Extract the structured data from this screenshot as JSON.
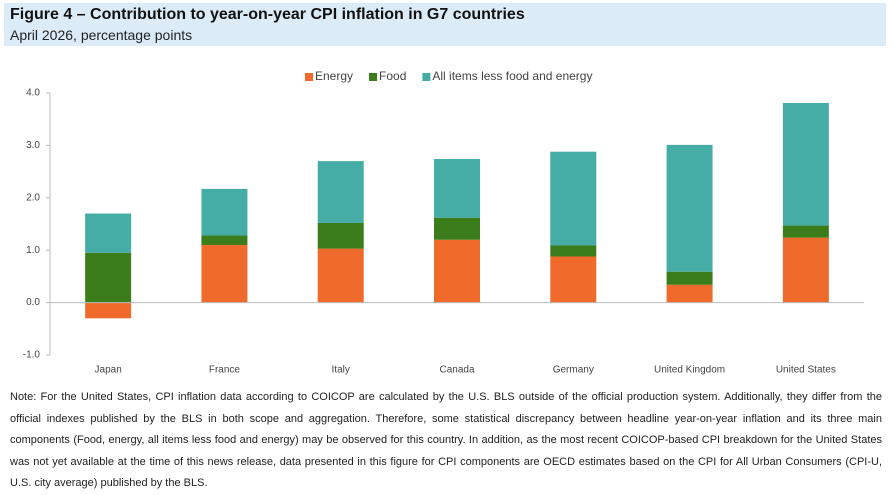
{
  "chart_data": {
    "type": "stacked_bar",
    "title": "Figure 4 – Contribution to year-on-year CPI inflation in G7 countries",
    "subtitle": "April 2026, percentage points",
    "categories": [
      "Japan",
      "France",
      "Italy",
      "Canada",
      "Germany",
      "United Kingdom",
      "United States"
    ],
    "series": [
      {
        "name": "Energy",
        "color": "#f06a2c",
        "values": [
          -0.3,
          1.1,
          1.03,
          1.2,
          0.88,
          0.34,
          1.24
        ]
      },
      {
        "name": "Food",
        "color": "#3a7d1a",
        "values": [
          0.95,
          0.18,
          0.49,
          0.42,
          0.21,
          0.25,
          0.23
        ]
      },
      {
        "name": "All items less food and energy",
        "color": "#45aca6",
        "values": [
          0.75,
          0.89,
          1.18,
          1.12,
          1.79,
          2.42,
          2.34
        ]
      }
    ],
    "ylim": [
      -1,
      4
    ],
    "yticks": [
      {
        "value": -1,
        "label": "-1.0"
      },
      {
        "value": 0,
        "label": "0.0"
      },
      {
        "value": 1,
        "label": "1.0"
      },
      {
        "value": 2,
        "label": "2.0"
      },
      {
        "value": 3,
        "label": "3.0"
      },
      {
        "value": 4,
        "label": "4.0"
      }
    ],
    "grid": false,
    "legend": "top",
    "note": "Note: For the United States, CPI inflation data according to COICOP are calculated by the U.S. BLS outside of the official production system. Additionally, they differ from the official indexes published by the BLS in both scope and aggregation. Therefore, some statistical discrepancy between headline year-on-year inflation and its three main components (Food, energy, all items less food and energy) may be observed for this country. In addition, as the most recent COICOP-based CPI breakdown for the United States was not yet available at the time of this news release, data presented in this figure for CPI components are OECD estimates based on the CPI for All Urban Consumers (CPI-U, U.S. city average) published by the BLS."
  }
}
